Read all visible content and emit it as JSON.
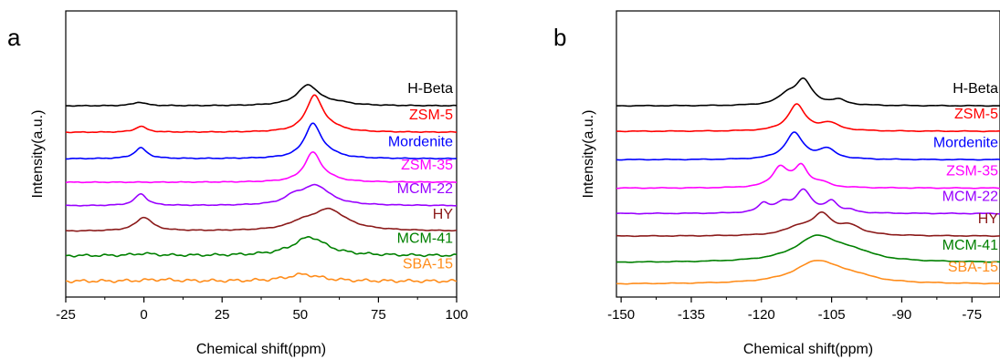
{
  "chart_data": [
    {
      "type": "line",
      "panel_label": "a",
      "xlabel": "Chemical shift(ppm)",
      "ylabel": "Intensity(a.u.)",
      "xlim": [
        -25,
        100
      ],
      "xticks": [
        -25,
        0,
        25,
        50,
        75,
        100
      ],
      "xtick_labels": [
        "-25",
        "0",
        "25",
        "50",
        "75",
        "100"
      ],
      "grid": false,
      "series": [
        {
          "name": "H-Beta",
          "color": "#000000",
          "baseline": 9.2,
          "wiggle": 0.012,
          "peaks": [
            {
              "x": 52.5,
              "h": 1.05,
              "w": 4.2
            },
            {
              "x": -1.5,
              "h": 0.18,
              "w": 2.5
            },
            {
              "x": 62,
              "h": 0.12,
              "w": 5
            }
          ]
        },
        {
          "name": "ZSM-5",
          "color": "#ff0000",
          "baseline": 7.85,
          "wiggle": 0.012,
          "peaks": [
            {
              "x": 54.5,
              "h": 1.85,
              "w": 3.2
            },
            {
              "x": -1,
              "h": 0.3,
              "w": 2.2
            },
            {
              "x": 60,
              "h": 0.15,
              "w": 4
            }
          ]
        },
        {
          "name": "Mordenite",
          "color": "#0000ff",
          "baseline": 6.5,
          "wiggle": 0.012,
          "peaks": [
            {
              "x": 54,
              "h": 1.75,
              "w": 3.2
            },
            {
              "x": -1,
              "h": 0.55,
              "w": 2.4
            },
            {
              "x": 59,
              "h": 0.15,
              "w": 4
            }
          ]
        },
        {
          "name": "ZSM-35",
          "color": "#ff00ff",
          "baseline": 5.3,
          "wiggle": 0.012,
          "peaks": [
            {
              "x": 54,
              "h": 1.5,
              "w": 3.2
            },
            {
              "x": 59,
              "h": 0.1,
              "w": 4
            }
          ]
        },
        {
          "name": "MCM-22",
          "color": "#9900ff",
          "baseline": 4.1,
          "wiggle": 0.012,
          "peaks": [
            {
              "x": 55,
              "h": 1.0,
              "w": 5.5
            },
            {
              "x": 48,
              "h": 0.35,
              "w": 3.5
            },
            {
              "x": -1,
              "h": 0.6,
              "w": 2.3
            }
          ]
        },
        {
          "name": "HY",
          "color": "#8b1a1a",
          "baseline": 2.8,
          "wiggle": 0.012,
          "peaks": [
            {
              "x": 59,
              "h": 1.1,
              "w": 7
            },
            {
              "x": 50,
              "h": 0.25,
              "w": 4.5
            },
            {
              "x": 0,
              "h": 0.7,
              "w": 3.2
            }
          ]
        },
        {
          "name": "MCM-41",
          "color": "#008000",
          "baseline": 1.55,
          "wiggle": 0.04,
          "peaks": [
            {
              "x": 53,
              "h": 0.95,
              "w": 6.5
            },
            {
              "x": 0,
              "h": 0.1,
              "w": 4
            }
          ]
        },
        {
          "name": "SBA-15",
          "color": "#ff8c1a",
          "baseline": 0.25,
          "wiggle": 0.05,
          "peaks": [
            {
              "x": 51,
              "h": 0.35,
              "w": 6.5
            },
            {
              "x": 5,
              "h": 0.08,
              "w": 6
            }
          ]
        }
      ]
    },
    {
      "type": "line",
      "panel_label": "b",
      "xlabel": "Chemical shift(ppm)",
      "ylabel": "Intensity(a.u.)",
      "xlim": [
        -151,
        -69
      ],
      "xticks": [
        -150,
        -135,
        -120,
        -105,
        -90,
        -75
      ],
      "xtick_labels": [
        "-150",
        "-135",
        "-120",
        "-105",
        "-90",
        "-75"
      ],
      "grid": false,
      "series": [
        {
          "name": "H-Beta",
          "color": "#000000",
          "baseline": 9.2,
          "wiggle": 0.012,
          "peaks": [
            {
              "x": -111,
              "h": 1.25,
              "w": 2.2
            },
            {
              "x": -114.5,
              "h": 0.45,
              "w": 2.3
            },
            {
              "x": -103.5,
              "h": 0.25,
              "w": 2
            }
          ]
        },
        {
          "name": "ZSM-5",
          "color": "#ff0000",
          "baseline": 7.9,
          "wiggle": 0.012,
          "peaks": [
            {
              "x": -112.5,
              "h": 1.35,
              "w": 2.2
            },
            {
              "x": -105.5,
              "h": 0.38,
              "w": 2.5
            }
          ]
        },
        {
          "name": "Mordenite",
          "color": "#0000ff",
          "baseline": 6.45,
          "wiggle": 0.012,
          "peaks": [
            {
              "x": -113,
              "h": 1.35,
              "w": 2.3
            },
            {
              "x": -106,
              "h": 0.5,
              "w": 2.2
            }
          ]
        },
        {
          "name": "ZSM-35",
          "color": "#ff00ff",
          "baseline": 5.0,
          "wiggle": 0.012,
          "peaks": [
            {
              "x": -116,
              "h": 1.02,
              "w": 2
            },
            {
              "x": -111.5,
              "h": 1.05,
              "w": 1.8
            },
            {
              "x": -107,
              "h": 0.2,
              "w": 2
            }
          ]
        },
        {
          "name": "MCM-22",
          "color": "#9900ff",
          "baseline": 3.7,
          "wiggle": 0.012,
          "peaks": [
            {
              "x": -119.5,
              "h": 0.45,
              "w": 1.4
            },
            {
              "x": -115.5,
              "h": 0.45,
              "w": 2
            },
            {
              "x": -111,
              "h": 1.15,
              "w": 2
            },
            {
              "x": -105,
              "h": 0.58,
              "w": 1.5
            },
            {
              "x": -101,
              "h": 0.12,
              "w": 1.5
            }
          ]
        },
        {
          "name": "HY",
          "color": "#8b1a1a",
          "baseline": 2.55,
          "wiggle": 0.012,
          "peaks": [
            {
              "x": -107,
              "h": 1.0,
              "w": 2.5
            },
            {
              "x": -101,
              "h": 0.45,
              "w": 3
            },
            {
              "x": -112,
              "h": 0.4,
              "w": 3.5
            }
          ]
        },
        {
          "name": "MCM-41",
          "color": "#008000",
          "baseline": 1.2,
          "wiggle": 0.012,
          "peaks": [
            {
              "x": -108,
              "h": 1.3,
              "w": 5.8
            },
            {
              "x": -100,
              "h": 0.35,
              "w": 5
            }
          ]
        },
        {
          "name": "SBA-15",
          "color": "#ff8c1a",
          "baseline": 0.1,
          "wiggle": 0.012,
          "peaks": [
            {
              "x": -108,
              "h": 1.15,
              "w": 6
            },
            {
              "x": -100,
              "h": 0.25,
              "w": 5
            }
          ]
        }
      ]
    }
  ]
}
